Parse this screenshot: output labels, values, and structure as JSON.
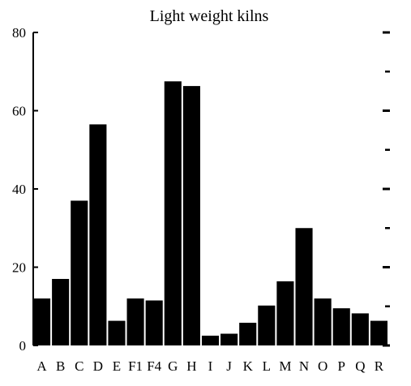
{
  "chart_data": {
    "type": "bar",
    "title": "Light weight kilns",
    "xlabel": "",
    "ylabel": "",
    "ylim": [
      0,
      80
    ],
    "yticks": [
      0,
      20,
      40,
      60,
      80
    ],
    "grid": false,
    "bar_color": "#000000",
    "categories": [
      "A",
      "B",
      "C",
      "D",
      "E",
      "F1",
      "F4",
      "G",
      "H",
      "I",
      "J",
      "K",
      "L",
      "M",
      "N",
      "O",
      "P",
      "Q",
      "R"
    ],
    "values": [
      12,
      17,
      37,
      56.5,
      6.3,
      12,
      11.5,
      67.5,
      66.3,
      2.5,
      3,
      5.8,
      10.2,
      16.4,
      30,
      12,
      9.5,
      8.2,
      6.3
    ],
    "ytick_labels": [
      "0",
      "20",
      "40",
      "60",
      "80"
    ]
  }
}
